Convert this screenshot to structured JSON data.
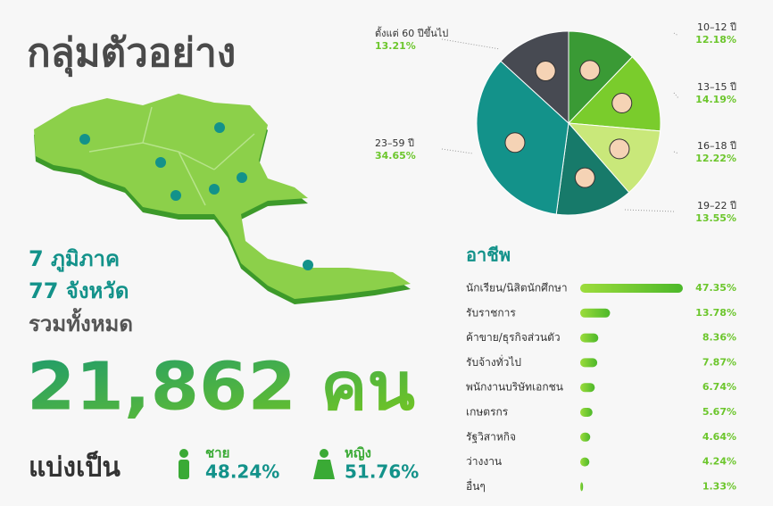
{
  "title": "กลุ่มตัวอย่าง",
  "regions": "7 ภูมิภาค",
  "provinces": "77 จังหวัด",
  "total_label": "รวมทั้งหมด",
  "total": "21,862 คน",
  "split_label": "แบ่งเป็น",
  "male": {
    "label": "ชาย",
    "value": "48.24%"
  },
  "female": {
    "label": "หญิง",
    "value": "51.76%"
  },
  "chart_data": [
    {
      "type": "pie",
      "categories": [
        "10–12 ปี",
        "13–15 ปี",
        "16–18 ปี",
        "19–22 ปี",
        "23–59 ปี",
        "ตั้งแต่ 60 ปีขึ้นไป"
      ],
      "values": [
        12.18,
        14.19,
        12.22,
        13.55,
        34.65,
        13.21
      ],
      "value_labels": [
        "12.18%",
        "14.19%",
        "12.22%",
        "13.55%",
        "34.65%",
        "13.21%"
      ],
      "colors": [
        "#3a9a35",
        "#7acc2c",
        "#c9e87a",
        "#177a6a",
        "#13928a",
        "#474a52"
      ]
    },
    {
      "type": "bar",
      "title": "อาชีพ",
      "categories": [
        "นักเรียน/นิสิตนักศึกษา",
        "รับราชการ",
        "ค้าขาย/ธุรกิจส่วนตัว",
        "รับจ้างทั่วไป",
        "พนักงานบริษัทเอกชน",
        "เกษตรกร",
        "รัฐวิสาหกิจ",
        "ว่างงาน",
        "อื่นๆ"
      ],
      "values": [
        47.35,
        13.78,
        8.36,
        7.87,
        6.74,
        5.67,
        4.64,
        4.24,
        1.33
      ],
      "value_labels": [
        "47.35%",
        "13.78%",
        "8.36%",
        "7.87%",
        "6.74%",
        "5.67%",
        "4.64%",
        "4.24%",
        "1.33%"
      ],
      "color": "#6cc62c"
    }
  ]
}
